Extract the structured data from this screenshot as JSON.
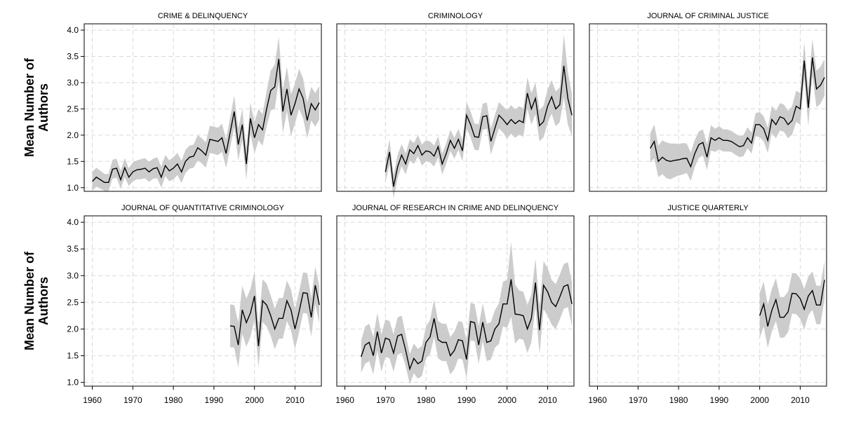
{
  "chart_data": {
    "type": "line",
    "figure_ylabel": "Mean Number of Authors",
    "ylabel_lines": [
      "Mean Number of",
      "Authors"
    ],
    "xlim": [
      1958,
      2016.5
    ],
    "ylim": [
      0.93,
      4.12
    ],
    "x_ticks": [
      1960,
      1970,
      1980,
      1990,
      2000,
      2010
    ],
    "x_tick_labels": [
      "1960",
      "1970",
      "1980",
      "1990",
      "2000",
      "2010"
    ],
    "y_ticks": [
      1.0,
      1.5,
      2.0,
      2.5,
      3.0,
      3.5,
      4.0
    ],
    "y_tick_labels": [
      "1.0",
      "1.5",
      "2.0",
      "2.5",
      "3.0",
      "3.5",
      "4.0"
    ],
    "band_description": "shaded confidence interval",
    "panels": [
      {
        "title": "CRIME & DELINQUENCY",
        "start_year": 1960,
        "mean": [
          1.12,
          1.2,
          1.15,
          1.1,
          1.1,
          1.35,
          1.37,
          1.15,
          1.38,
          1.2,
          1.3,
          1.34,
          1.35,
          1.37,
          1.3,
          1.36,
          1.38,
          1.2,
          1.42,
          1.32,
          1.37,
          1.45,
          1.3,
          1.5,
          1.58,
          1.6,
          1.76,
          1.7,
          1.62,
          1.92,
          1.9,
          1.88,
          1.95,
          1.65,
          2.05,
          2.45,
          1.82,
          2.2,
          1.45,
          2.32,
          1.95,
          2.2,
          2.1,
          2.5,
          2.85,
          2.92,
          3.45,
          2.45,
          2.88,
          2.38,
          2.6,
          2.88,
          2.7,
          2.28,
          2.6,
          2.48,
          2.62
        ],
        "ci_halfwidth": [
          0.18,
          0.18,
          0.17,
          0.16,
          0.16,
          0.18,
          0.18,
          0.17,
          0.18,
          0.17,
          0.18,
          0.18,
          0.19,
          0.19,
          0.19,
          0.19,
          0.2,
          0.2,
          0.2,
          0.2,
          0.21,
          0.21,
          0.21,
          0.22,
          0.22,
          0.22,
          0.24,
          0.24,
          0.24,
          0.26,
          0.26,
          0.26,
          0.27,
          0.27,
          0.29,
          0.3,
          0.3,
          0.3,
          0.3,
          0.3,
          0.3,
          0.3,
          0.3,
          0.34,
          0.38,
          0.42,
          0.42,
          0.42,
          0.42,
          0.4,
          0.38,
          0.38,
          0.38,
          0.34,
          0.32,
          0.32,
          0.32
        ]
      },
      {
        "title": "CRIMINOLOGY",
        "start_year": 1970,
        "mean": [
          1.3,
          1.68,
          1.02,
          1.4,
          1.62,
          1.45,
          1.72,
          1.65,
          1.8,
          1.62,
          1.7,
          1.68,
          1.6,
          1.78,
          1.45,
          1.65,
          1.9,
          1.75,
          1.92,
          1.7,
          2.38,
          2.2,
          1.97,
          1.96,
          2.35,
          2.37,
          1.88,
          2.13,
          2.38,
          2.3,
          2.2,
          2.3,
          2.22,
          2.28,
          2.24,
          2.8,
          2.5,
          2.7,
          2.18,
          2.26,
          2.55,
          2.73,
          2.5,
          2.58,
          3.32,
          2.7,
          2.38
        ],
        "ci_halfwidth": [
          0.2,
          0.24,
          0.22,
          0.22,
          0.21,
          0.2,
          0.2,
          0.2,
          0.2,
          0.2,
          0.2,
          0.2,
          0.2,
          0.2,
          0.2,
          0.2,
          0.2,
          0.2,
          0.2,
          0.2,
          0.25,
          0.25,
          0.25,
          0.25,
          0.25,
          0.25,
          0.25,
          0.25,
          0.25,
          0.25,
          0.27,
          0.27,
          0.27,
          0.27,
          0.27,
          0.3,
          0.3,
          0.3,
          0.3,
          0.3,
          0.32,
          0.32,
          0.33,
          0.33,
          0.6,
          0.5,
          0.4
        ]
      },
      {
        "title": "JOURNAL OF CRIMINAL JUSTICE",
        "start_year": 1973,
        "mean": [
          1.75,
          1.88,
          1.5,
          1.58,
          1.52,
          1.5,
          1.52,
          1.53,
          1.55,
          1.56,
          1.4,
          1.65,
          1.82,
          1.86,
          1.58,
          1.95,
          1.9,
          1.95,
          1.9,
          1.9,
          1.88,
          1.83,
          1.78,
          1.8,
          1.95,
          1.85,
          2.2,
          2.2,
          2.12,
          1.9,
          2.3,
          2.2,
          2.35,
          2.32,
          2.2,
          2.28,
          2.55,
          2.5,
          3.42,
          2.52,
          3.48,
          2.88,
          2.95,
          3.1
        ],
        "ci_halfwidth": [
          0.28,
          0.32,
          0.3,
          0.32,
          0.34,
          0.34,
          0.32,
          0.3,
          0.3,
          0.28,
          0.27,
          0.26,
          0.25,
          0.25,
          0.24,
          0.24,
          0.22,
          0.22,
          0.21,
          0.21,
          0.2,
          0.2,
          0.2,
          0.2,
          0.2,
          0.2,
          0.22,
          0.24,
          0.24,
          0.24,
          0.26,
          0.26,
          0.26,
          0.26,
          0.26,
          0.27,
          0.3,
          0.3,
          0.35,
          0.35,
          0.35,
          0.35,
          0.35,
          0.35
        ]
      },
      {
        "title": "JOURNAL OF QUANTITATIVE CRIMINOLOGY",
        "start_year": 1994,
        "mean": [
          2.06,
          2.05,
          1.7,
          2.36,
          2.12,
          2.3,
          2.62,
          1.68,
          2.53,
          2.45,
          2.25,
          2.0,
          2.2,
          2.2,
          2.53,
          2.36,
          2.0,
          2.32,
          2.68,
          2.67,
          2.22,
          2.82,
          2.45
        ],
        "ci_halfwidth": [
          0.4,
          0.4,
          0.42,
          0.45,
          0.45,
          0.45,
          0.45,
          0.4,
          0.4,
          0.4,
          0.38,
          0.38,
          0.38,
          0.38,
          0.38,
          0.38,
          0.38,
          0.38,
          0.38,
          0.38,
          0.36,
          0.35,
          0.35
        ]
      },
      {
        "title": "JOURNAL OF RESEARCH IN CRIME AND DELINQUENCY",
        "start_year": 1964,
        "mean": [
          1.48,
          1.7,
          1.75,
          1.5,
          1.95,
          1.55,
          1.83,
          1.8,
          1.55,
          1.87,
          1.9,
          1.6,
          1.25,
          1.45,
          1.35,
          1.4,
          1.75,
          1.85,
          2.2,
          1.8,
          1.75,
          1.75,
          1.5,
          1.6,
          1.8,
          1.78,
          1.43,
          2.14,
          2.12,
          1.7,
          2.13,
          1.75,
          1.78,
          2.0,
          2.1,
          2.47,
          2.47,
          2.93,
          2.28,
          2.27,
          2.25,
          2.0,
          2.2,
          2.87,
          1.98,
          2.82,
          2.7,
          2.5,
          2.42,
          2.6,
          2.8,
          2.83,
          2.47
        ],
        "ci_halfwidth": [
          0.3,
          0.35,
          0.35,
          0.35,
          0.35,
          0.35,
          0.35,
          0.35,
          0.35,
          0.35,
          0.35,
          0.3,
          0.28,
          0.28,
          0.28,
          0.28,
          0.3,
          0.32,
          0.35,
          0.35,
          0.35,
          0.35,
          0.35,
          0.35,
          0.35,
          0.35,
          0.35,
          0.35,
          0.35,
          0.35,
          0.35,
          0.35,
          0.35,
          0.35,
          0.38,
          0.42,
          0.45,
          0.7,
          0.55,
          0.45,
          0.45,
          0.45,
          0.45,
          0.45,
          0.45,
          0.45,
          0.45,
          0.42,
          0.42,
          0.42,
          0.42,
          0.42,
          0.42
        ]
      },
      {
        "title": "JUSTICE QUARTERLY",
        "start_year": 2000,
        "mean": [
          2.25,
          2.47,
          2.05,
          2.35,
          2.55,
          2.22,
          2.22,
          2.32,
          2.67,
          2.66,
          2.57,
          2.37,
          2.62,
          2.72,
          2.45,
          2.45,
          2.92
        ],
        "ci_halfwidth": [
          0.42,
          0.42,
          0.4,
          0.4,
          0.4,
          0.38,
          0.38,
          0.38,
          0.38,
          0.38,
          0.38,
          0.38,
          0.36,
          0.36,
          0.36,
          0.36,
          0.36
        ]
      }
    ]
  }
}
